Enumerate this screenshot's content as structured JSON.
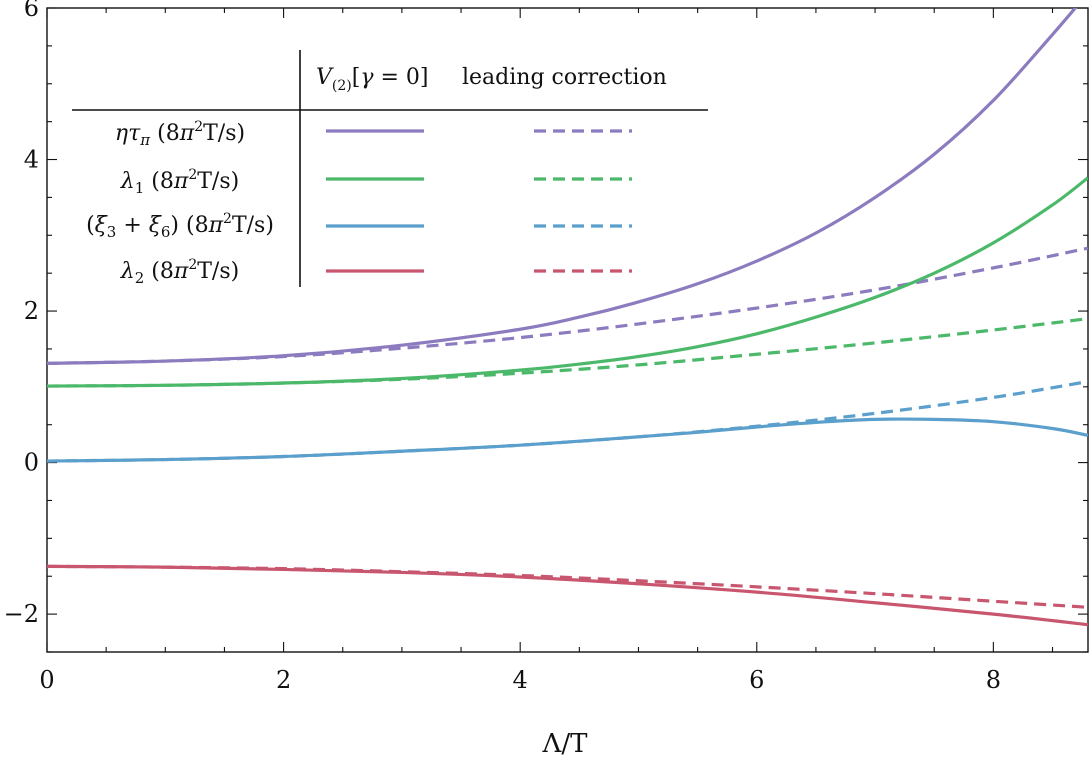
{
  "chart_data": {
    "type": "line",
    "title": "",
    "xlabel": "Λ/T",
    "ylabel": "",
    "xlim": [
      0,
      8.8
    ],
    "ylim": [
      -2.5,
      6
    ],
    "x_ticks": [
      0,
      2,
      4,
      6,
      8
    ],
    "x_tick_labels": [
      "0",
      "2",
      "4",
      "6",
      "8"
    ],
    "y_ticks": [
      -2,
      0,
      2,
      4,
      6
    ],
    "y_tick_labels": [
      "−2",
      "0",
      "2",
      "4",
      "6"
    ],
    "grid": false,
    "legend": {
      "placement": "top-left",
      "header": [
        "V(2)[γ = 0]",
        "leading correction"
      ],
      "rows": [
        "ητπ (8π²T/s)",
        "λ1 (8π²T/s)",
        "(ξ3 + ξ6) (8π²T/s)",
        "λ2 (8π²T/s)"
      ]
    },
    "colors": {
      "eta_tau": "#8c7bbf",
      "lambda1": "#4bb86a",
      "xi": "#5b9fcc",
      "lambda2": "#c9566f"
    },
    "series": [
      {
        "name": "ητπ (8π²T/s)",
        "style": "solid",
        "color_key": "eta_tau",
        "x": [
          0,
          1,
          2,
          3,
          4,
          4.5,
          5,
          5.5,
          6,
          6.5,
          7,
          7.5,
          8,
          8.5,
          8.8
        ],
        "y": [
          1.31,
          1.34,
          1.41,
          1.55,
          1.76,
          1.92,
          2.12,
          2.36,
          2.66,
          3.03,
          3.5,
          4.07,
          4.78,
          5.65,
          6.2
        ]
      },
      {
        "name": "ητπ (8π²T/s)",
        "style": "dashed",
        "color_key": "eta_tau",
        "x": [
          0,
          1,
          2,
          3,
          4,
          5,
          6,
          7,
          8,
          8.8
        ],
        "y": [
          1.31,
          1.34,
          1.4,
          1.51,
          1.65,
          1.83,
          2.04,
          2.28,
          2.57,
          2.83
        ]
      },
      {
        "name": "λ1 (8π²T/s)",
        "style": "solid",
        "color_key": "lambda1",
        "x": [
          0,
          1,
          2,
          3,
          4,
          4.5,
          5,
          5.5,
          6,
          6.5,
          7,
          7.5,
          8,
          8.5,
          8.8
        ],
        "y": [
          1.01,
          1.02,
          1.05,
          1.11,
          1.22,
          1.3,
          1.4,
          1.53,
          1.7,
          1.92,
          2.18,
          2.5,
          2.9,
          3.4,
          3.76
        ]
      },
      {
        "name": "λ1 (8π²T/s)",
        "style": "dashed",
        "color_key": "lambda1",
        "x": [
          0,
          1,
          2,
          3,
          4,
          5,
          6,
          7,
          8,
          8.8
        ],
        "y": [
          1.01,
          1.02,
          1.05,
          1.1,
          1.18,
          1.29,
          1.43,
          1.58,
          1.75,
          1.9
        ]
      },
      {
        "name": "(ξ3 + ξ6) (8π²T/s)",
        "style": "solid",
        "color_key": "xi",
        "x": [
          0,
          1,
          2,
          3,
          4,
          5,
          5.5,
          6,
          6.5,
          7,
          7.5,
          8,
          8.5,
          8.8
        ],
        "y": [
          0.02,
          0.04,
          0.08,
          0.15,
          0.23,
          0.34,
          0.4,
          0.47,
          0.53,
          0.57,
          0.57,
          0.54,
          0.45,
          0.36
        ]
      },
      {
        "name": "(ξ3 + ξ6) (8π²T/s)",
        "style": "dashed",
        "color_key": "xi",
        "x": [
          0,
          1,
          2,
          3,
          4,
          5,
          6,
          7,
          8,
          8.8
        ],
        "y": [
          0.02,
          0.04,
          0.08,
          0.15,
          0.23,
          0.34,
          0.48,
          0.65,
          0.86,
          1.07
        ]
      },
      {
        "name": "λ2 (8π²T/s)",
        "style": "solid",
        "color_key": "lambda2",
        "x": [
          0,
          1,
          2,
          3,
          4,
          5,
          6,
          7,
          8,
          8.8
        ],
        "y": [
          -1.37,
          -1.38,
          -1.41,
          -1.45,
          -1.51,
          -1.6,
          -1.71,
          -1.85,
          -2.0,
          -2.14
        ]
      },
      {
        "name": "λ2 (8π²T/s)",
        "style": "dashed",
        "color_key": "lambda2",
        "x": [
          0,
          1,
          2,
          3,
          4,
          5,
          6,
          7,
          8,
          8.8
        ],
        "y": [
          -1.37,
          -1.38,
          -1.4,
          -1.44,
          -1.49,
          -1.56,
          -1.64,
          -1.73,
          -1.83,
          -1.91
        ]
      }
    ]
  }
}
